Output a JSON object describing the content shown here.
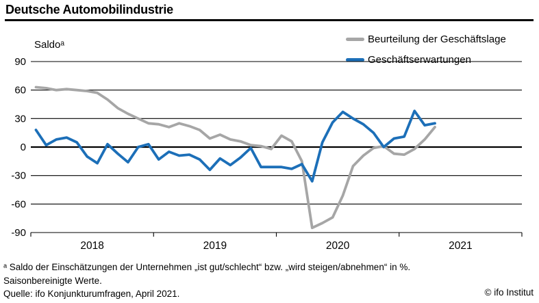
{
  "header": {
    "title": "Deutsche Automobilindustrie"
  },
  "axis_label": "Saldoᵃ",
  "legend": {
    "items": [
      {
        "label": "Beurteilung der Geschäftslage",
        "color": "#a6a6a6"
      },
      {
        "label": "Geschäftserwartungen",
        "color": "#1c6fb8"
      }
    ]
  },
  "footnotes": {
    "line1": "ᵃ Saldo der Einschätzungen der Unternehmen „ist gut/schlecht“ bzw. „wird steigen/abnehmen“ in %.",
    "line2": "Saisonbereinigte Werte.",
    "line3": "Quelle: ifo Konjunkturumfragen, April 2021."
  },
  "copyright": "© ifo Institut",
  "chart_data": {
    "type": "line",
    "title": "Deutsche Automobilindustrie",
    "ylabel": "Saldoᵃ",
    "ylim": [
      -90,
      90
    ],
    "yticks": [
      90,
      60,
      30,
      0,
      -30,
      -60,
      -90
    ],
    "grid": "horizontal",
    "legend_position": "top-right",
    "x_unit": "month",
    "x_start": "2018-01",
    "x_end": "2021-04",
    "x_axis_span_months": 48,
    "x_axis_years": [
      "2018",
      "2019",
      "2020",
      "2021"
    ],
    "series": [
      {
        "name": "Beurteilung der Geschäftslage",
        "color": "#a6a6a6",
        "values": [
          63,
          62,
          60,
          61,
          60,
          59,
          57,
          50,
          41,
          35,
          30,
          25,
          24,
          21,
          25,
          22,
          18,
          9,
          13,
          8,
          6,
          2,
          1,
          -2,
          12,
          6,
          -15,
          -85,
          -80,
          -74,
          -51,
          -20,
          -9,
          -1,
          1,
          -7,
          -8,
          -2,
          8,
          21
        ]
      },
      {
        "name": "Geschäftserwartungen",
        "color": "#1c6fb8",
        "values": [
          18,
          2,
          8,
          10,
          5,
          -10,
          -17,
          3,
          -7,
          -16,
          0,
          3,
          -13,
          -5,
          -9,
          -8,
          -13,
          -24,
          -12,
          -19,
          -11,
          -1,
          -21,
          -21,
          -21,
          -23,
          -18,
          -36,
          5,
          26,
          37,
          30,
          24,
          15,
          0,
          9,
          11,
          38,
          23,
          25
        ]
      }
    ]
  }
}
